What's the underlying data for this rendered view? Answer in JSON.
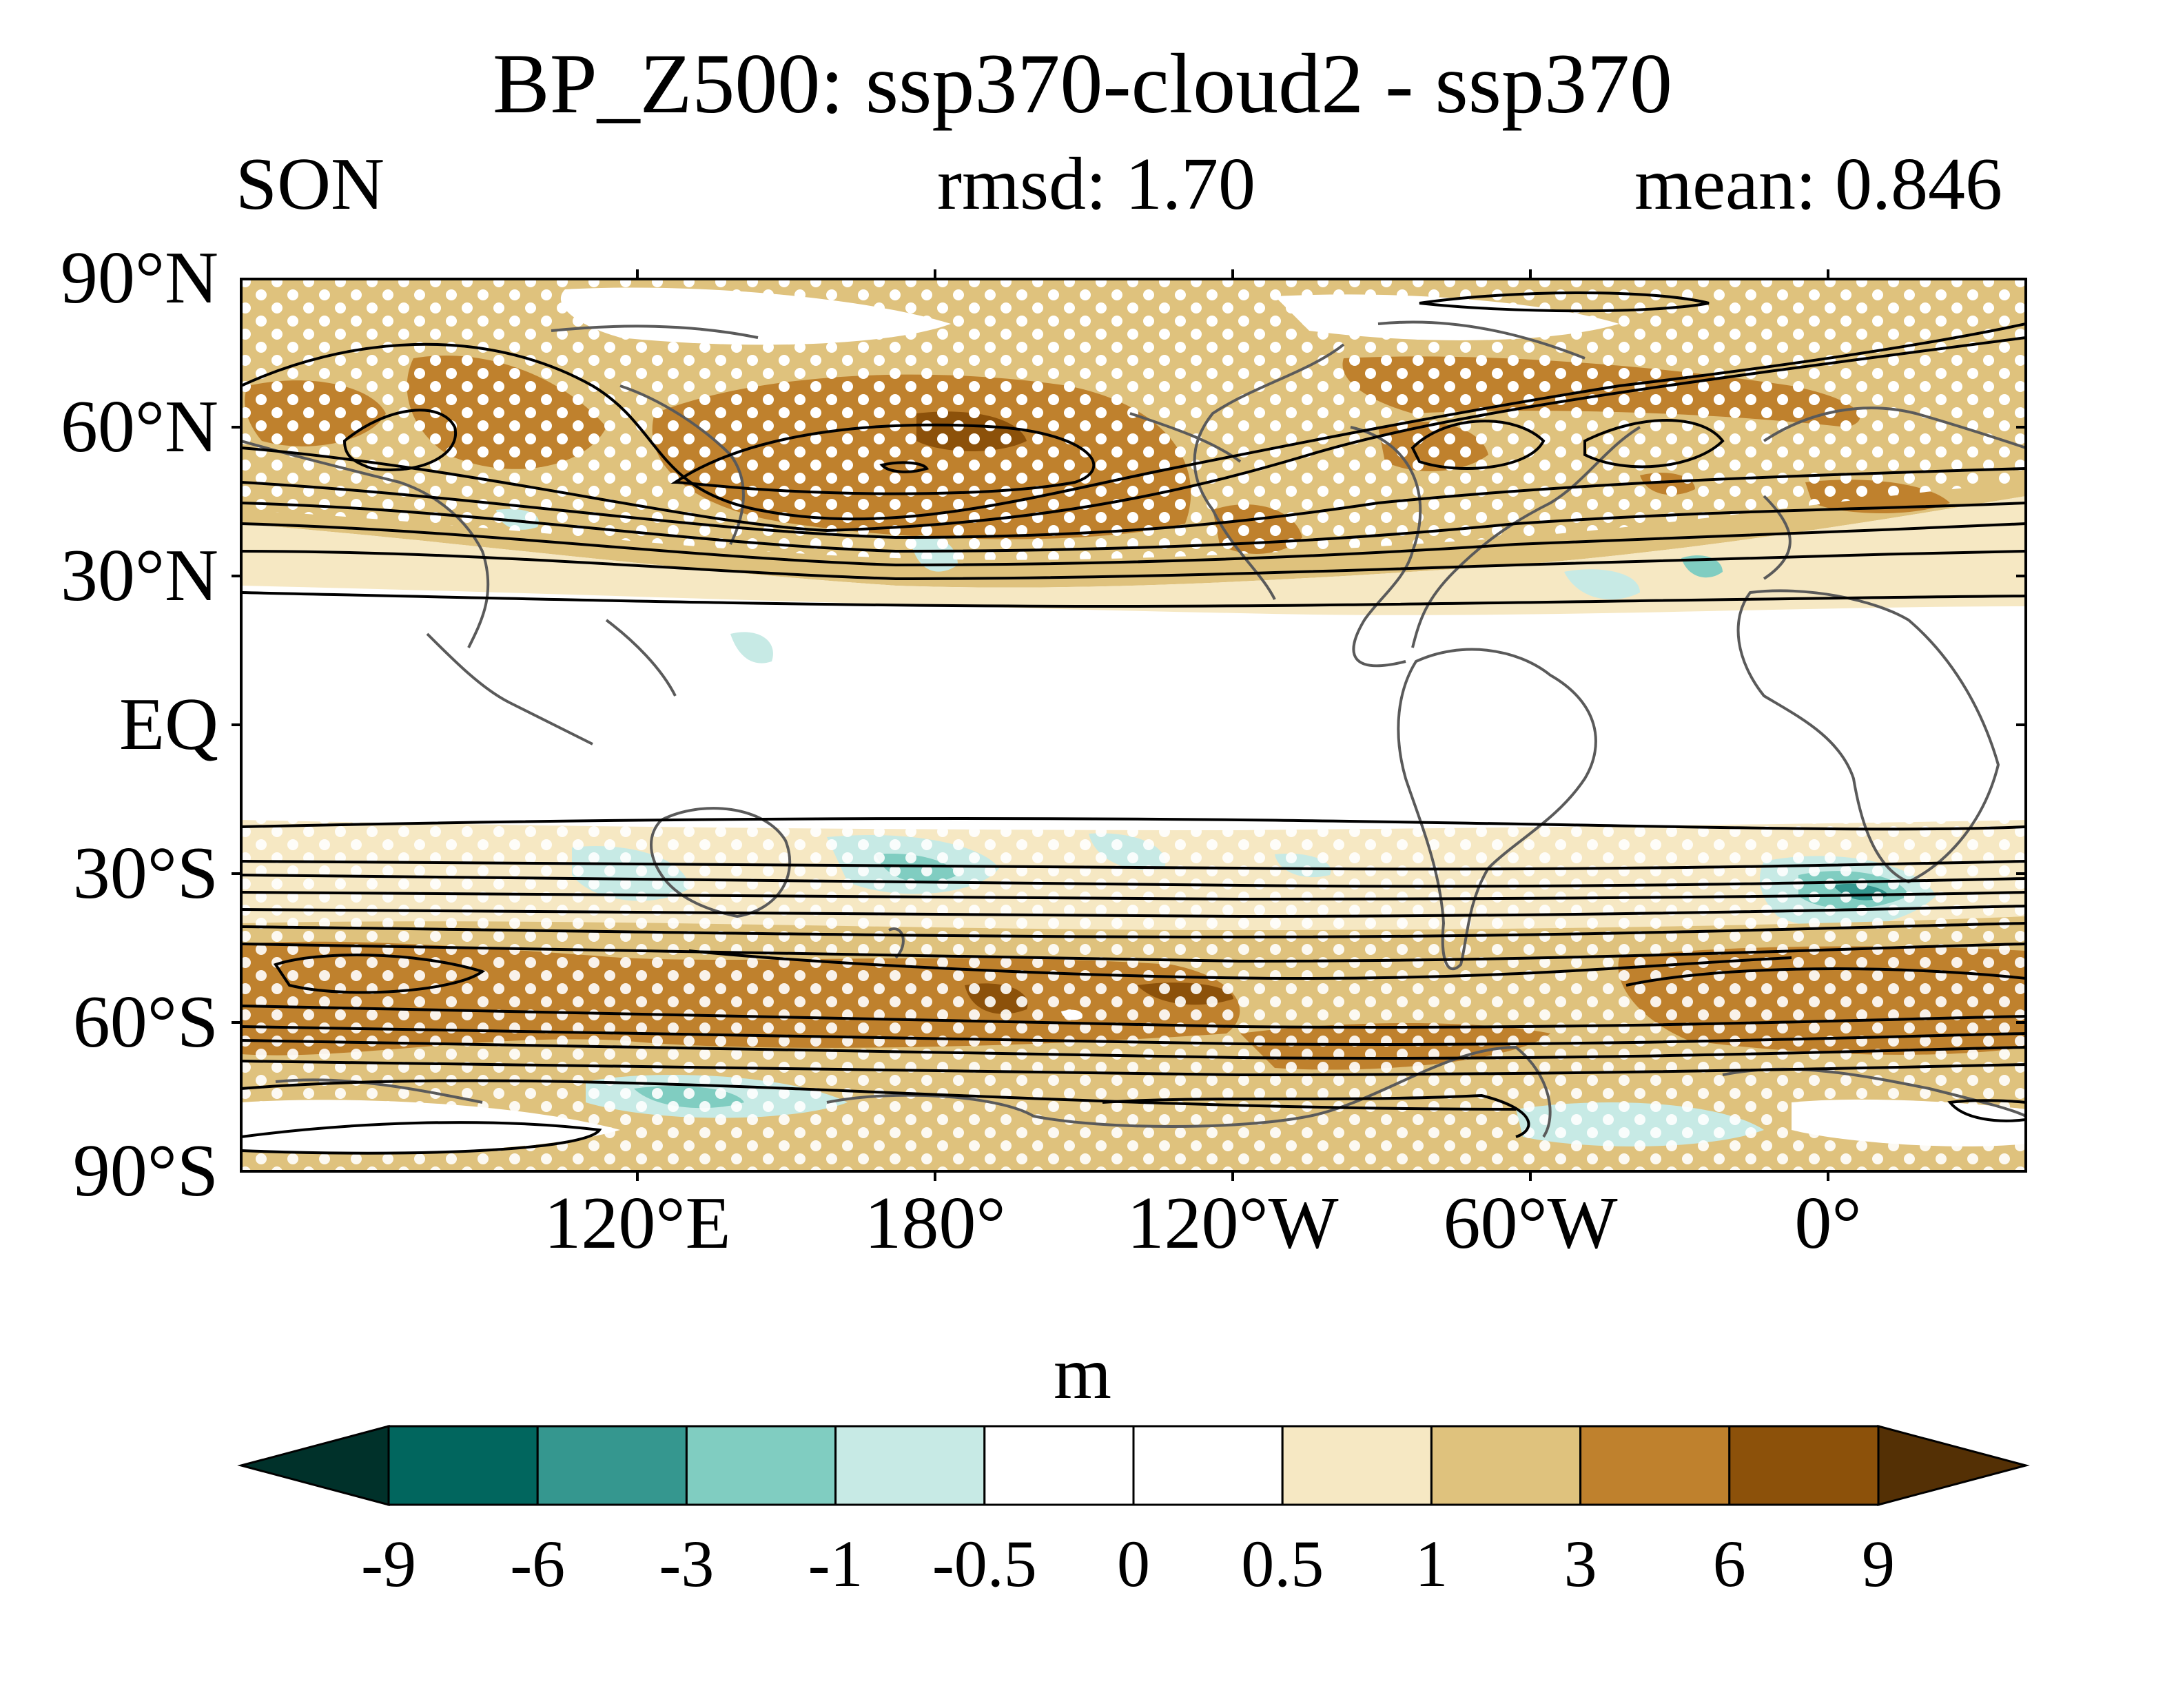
{
  "title": "BP_Z500: ssp370-cloud2 - ssp370",
  "season": "SON",
  "rmsd_text": "rmsd: 1.70",
  "mean_text": "mean: 0.846",
  "map": {
    "projection": "cylindrical equidistant",
    "lon_range": [
      30,
      390
    ],
    "lat_range": [
      -90,
      90
    ],
    "y_ticks": [
      "90°N",
      "60°N",
      "30°N",
      "EQ",
      "30°S",
      "60°S",
      "90°S"
    ],
    "x_ticks": [
      "120°E",
      "180°",
      "120°W",
      "60°W",
      "0°"
    ],
    "coastline_color": "#5a5a5a",
    "contour_color": "#000000",
    "stippling": "white dots"
  },
  "colorbar": {
    "unit": "m",
    "levels": [
      "-9",
      "-6",
      "-3",
      "-1",
      "-0.5",
      "0",
      "0.5",
      "1",
      "3",
      "6",
      "9"
    ],
    "colors": [
      "#00312a",
      "#01665e",
      "#35978f",
      "#80cdc1",
      "#c7eae5",
      "#ffffff",
      "#ffffff",
      "#f6e8c3",
      "#dfc27d",
      "#bf812d",
      "#8c510a",
      "#543005"
    ]
  }
}
